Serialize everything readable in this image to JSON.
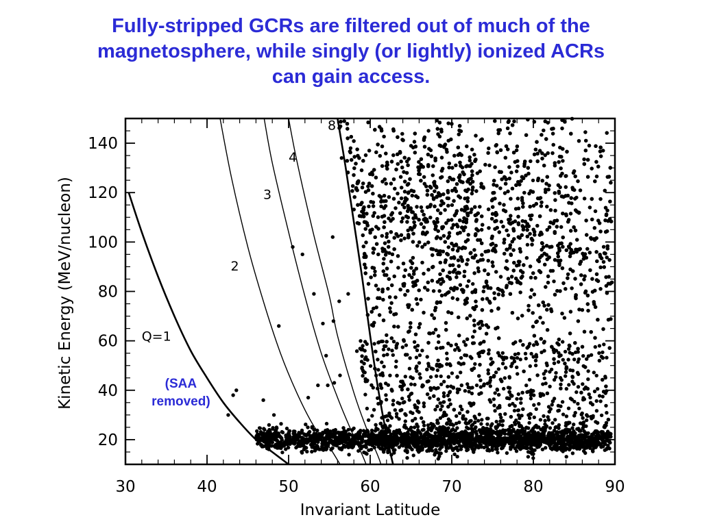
{
  "slide": {
    "title_lines": [
      "Fully-stripped GCRs are filtered out of much of the",
      "magnetosphere, while singly (or lightly) ionized ACRs",
      "can gain access."
    ]
  },
  "chart_data": {
    "type": "scatter",
    "xlabel": "Invariant Latitude",
    "ylabel": "Kinetic Energy (MeV/nucleon)",
    "xlim": [
      30,
      90
    ],
    "ylim": [
      10,
      150
    ],
    "xticks": [
      30,
      40,
      50,
      60,
      70,
      80,
      90
    ],
    "yticks": [
      20,
      40,
      60,
      80,
      100,
      120,
      140
    ],
    "xtick_labels": [
      "30",
      "40",
      "50",
      "60",
      "70",
      "80",
      "90"
    ],
    "ytick_labels": [
      "20",
      "40",
      "60",
      "80",
      "100",
      "120",
      "140"
    ],
    "grid": false,
    "marker_color": "#000000",
    "curves": [
      {
        "label": "Q=1",
        "label_at": [
          33.8,
          61.5
        ],
        "style": "thick",
        "points": [
          [
            30.4,
            120
          ],
          [
            32,
            104
          ],
          [
            34,
            86
          ],
          [
            36,
            70
          ],
          [
            38,
            56
          ],
          [
            40,
            45
          ],
          [
            42,
            35
          ],
          [
            44,
            27
          ],
          [
            46,
            20
          ],
          [
            48,
            15
          ],
          [
            50,
            10
          ]
        ]
      },
      {
        "label": "2",
        "label_at": [
          43.4,
          90
        ],
        "style": "thin",
        "points": [
          [
            41.6,
            150
          ],
          [
            43,
            126
          ],
          [
            45,
            98
          ],
          [
            47,
            75
          ],
          [
            49,
            55
          ],
          [
            51,
            39
          ],
          [
            53,
            26
          ],
          [
            55,
            17
          ],
          [
            56.3,
            10
          ]
        ]
      },
      {
        "label": "3",
        "label_at": [
          47.4,
          119
        ],
        "style": "thin",
        "points": [
          [
            47,
            150
          ],
          [
            48,
            132
          ],
          [
            50,
            104
          ],
          [
            52,
            78
          ],
          [
            54,
            55
          ],
          [
            56,
            37
          ],
          [
            57.5,
            25
          ],
          [
            59,
            14
          ],
          [
            59.5,
            10
          ]
        ]
      },
      {
        "label": "4",
        "label_at": [
          50.5,
          134
        ],
        "style": "thin",
        "points": [
          [
            50,
            150
          ],
          [
            51,
            133
          ],
          [
            53,
            104
          ],
          [
            55,
            78
          ],
          [
            56,
            62
          ],
          [
            58,
            39
          ],
          [
            59.5,
            25
          ],
          [
            61,
            13
          ],
          [
            61.3,
            10
          ]
        ]
      },
      {
        "label": "8",
        "label_at": [
          55.3,
          147
        ],
        "style": "thick",
        "points": [
          [
            56,
            150
          ],
          [
            57,
            130
          ],
          [
            58,
            108
          ],
          [
            59,
            86
          ],
          [
            60,
            62
          ],
          [
            61,
            40
          ],
          [
            62,
            22
          ],
          [
            62.8,
            10
          ]
        ]
      }
    ],
    "points_note": "Dense particle events concentrated at 18-25 MeV/nucleon across 47-90 deg and at 20-150 MeV/nucleon above the Q=8 cutoff (~57-90 deg); sparse isolated events between cutoffs.",
    "sample_points": [
      [
        48.8,
        66
      ],
      [
        50.5,
        98
      ],
      [
        51.7,
        95
      ],
      [
        53.1,
        79
      ],
      [
        54.2,
        67
      ],
      [
        54.6,
        54
      ],
      [
        55.5,
        68
      ],
      [
        56.2,
        76
      ],
      [
        57.3,
        79
      ],
      [
        55.4,
        102
      ],
      [
        56.5,
        134
      ],
      [
        57.6,
        138
      ],
      [
        43.2,
        38
      ],
      [
        43.6,
        40
      ],
      [
        42.6,
        30
      ],
      [
        46.9,
        36
      ],
      [
        48.2,
        30
      ],
      [
        52.4,
        37
      ],
      [
        53.6,
        42
      ],
      [
        54.8,
        42
      ],
      [
        55.6,
        43
      ],
      [
        56.3,
        46
      ]
    ],
    "annotations": [
      {
        "text_lines": [
          "(SAA",
          "removed)"
        ],
        "at": [
          36.8,
          41
        ],
        "color": "#2b2bd6"
      }
    ]
  }
}
